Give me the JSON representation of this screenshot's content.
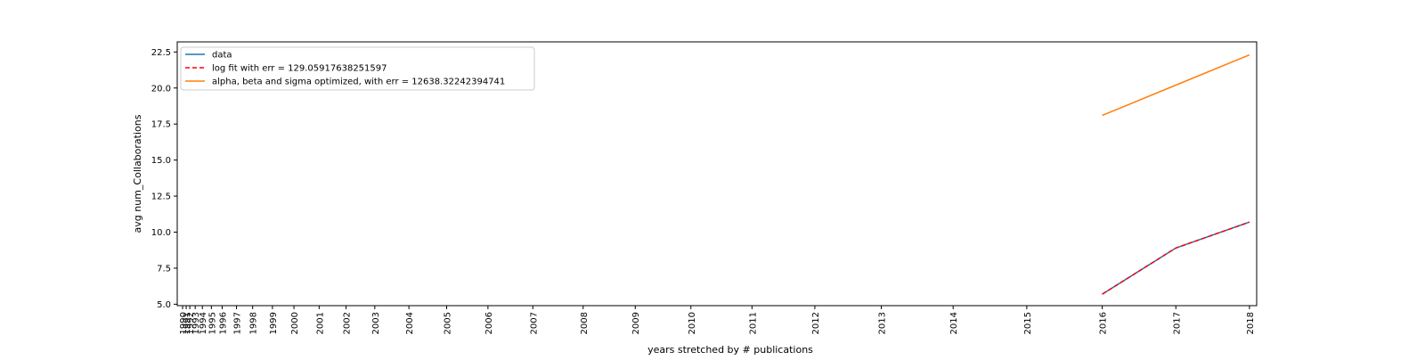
{
  "chart_data": {
    "type": "line",
    "title": "",
    "xlabel": "years stretched by # publications",
    "ylabel": "avg num_Collaborations",
    "x_ticks": [
      {
        "label": "1990",
        "pos": 0
      },
      {
        "label": "1991",
        "pos": 2
      },
      {
        "label": "1992",
        "pos": 4
      },
      {
        "label": "1993",
        "pos": 7
      },
      {
        "label": "1994",
        "pos": 11
      },
      {
        "label": "1995",
        "pos": 16
      },
      {
        "label": "1996",
        "pos": 22
      },
      {
        "label": "1997",
        "pos": 30
      },
      {
        "label": "1998",
        "pos": 39
      },
      {
        "label": "1999",
        "pos": 50
      },
      {
        "label": "2000",
        "pos": 62
      },
      {
        "label": "2001",
        "pos": 76
      },
      {
        "label": "2002",
        "pos": 91
      },
      {
        "label": "2003",
        "pos": 107
      },
      {
        "label": "2004",
        "pos": 126
      },
      {
        "label": "2005",
        "pos": 147
      },
      {
        "label": "2006",
        "pos": 170
      },
      {
        "label": "2007",
        "pos": 195
      },
      {
        "label": "2008",
        "pos": 223
      },
      {
        "label": "2009",
        "pos": 252
      },
      {
        "label": "2010",
        "pos": 283
      },
      {
        "label": "2011",
        "pos": 317
      },
      {
        "label": "2012",
        "pos": 352
      },
      {
        "label": "2013",
        "pos": 389
      },
      {
        "label": "2014",
        "pos": 429
      },
      {
        "label": "2015",
        "pos": 470
      },
      {
        "label": "2016",
        "pos": 512
      },
      {
        "label": "2017",
        "pos": 553
      },
      {
        "label": "2018",
        "pos": 594
      }
    ],
    "xlim": [
      -3,
      598
    ],
    "ylim": [
      4.9,
      23.2
    ],
    "y_ticks": [
      5.0,
      7.5,
      10.0,
      12.5,
      15.0,
      17.5,
      20.0,
      22.5
    ],
    "y_tick_labels": [
      "5.0",
      "7.5",
      "10.0",
      "12.5",
      "15.0",
      "17.5",
      "20.0",
      "22.5"
    ],
    "grid": false,
    "legend_position": "upper-left",
    "series": [
      {
        "name": "data",
        "color": "#1f77b4",
        "dash": "solid",
        "x": [
          512,
          553,
          594
        ],
        "y": [
          5.7,
          8.9,
          10.7
        ]
      },
      {
        "name": "log fit with err = 129.05917638251597",
        "color": "#ff0000",
        "dash": "dashed",
        "x": [
          512,
          553,
          594
        ],
        "y": [
          5.7,
          8.9,
          10.7
        ]
      },
      {
        "name": "alpha, beta and sigma optimized, with err = 12638.32242394741",
        "color": "#ff7f0e",
        "dash": "solid",
        "x": [
          512,
          553,
          594
        ],
        "y": [
          18.1,
          20.2,
          22.3
        ]
      }
    ]
  }
}
